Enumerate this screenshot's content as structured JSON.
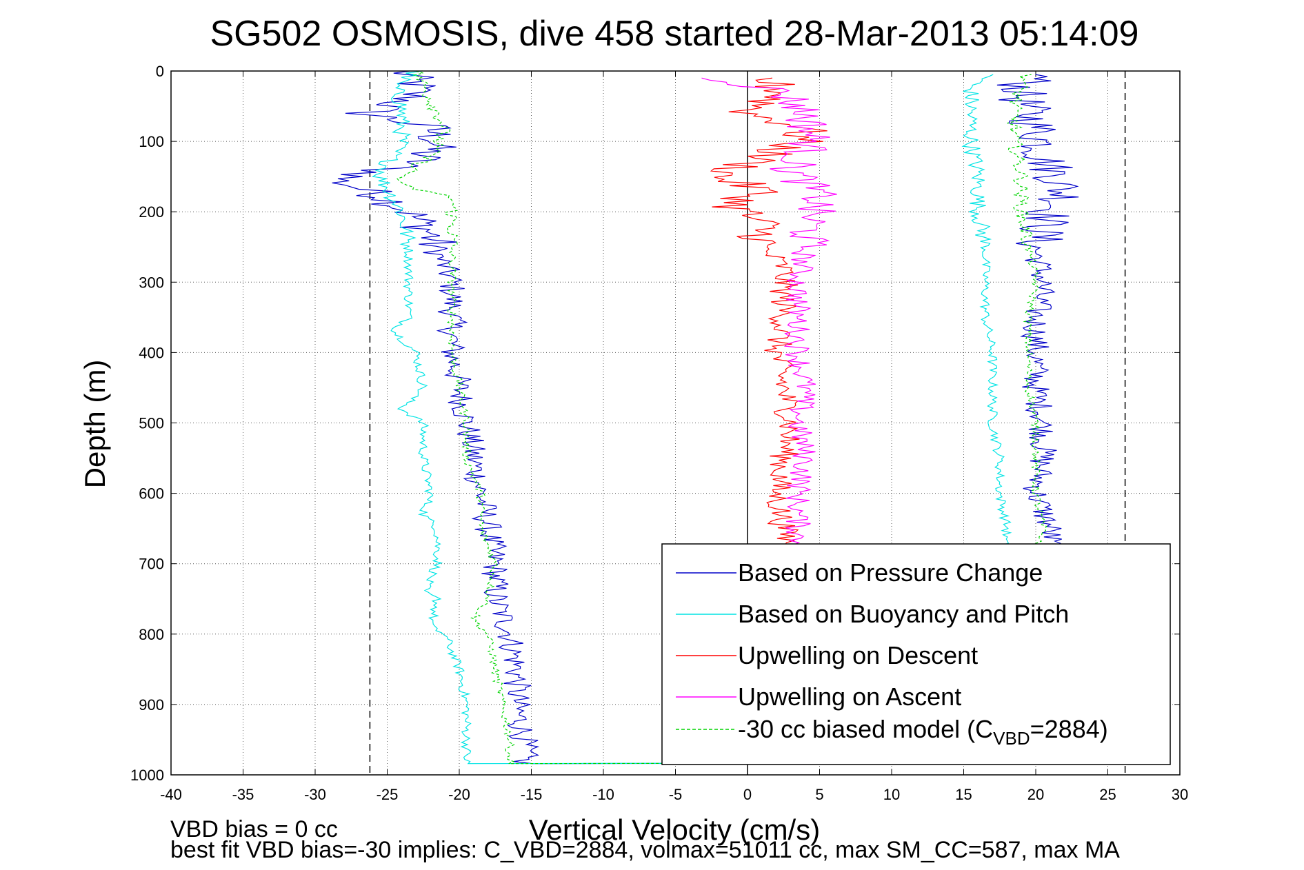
{
  "chart_data": {
    "type": "line",
    "title": "SG502 OSMOSIS, dive 458 started 28-Mar-2013 05:14:09",
    "xlabel": "Vertical Velocity (cm/s)",
    "ylabel": "Depth (m)",
    "xlim": [
      -40,
      30
    ],
    "ylim": [
      0,
      1000
    ],
    "y_reversed": true,
    "grid": true,
    "x_ticks": [
      -40,
      -35,
      -30,
      -25,
      -20,
      -15,
      -10,
      -5,
      0,
      5,
      10,
      15,
      20,
      25,
      30
    ],
    "y_ticks": [
      0,
      100,
      200,
      300,
      400,
      500,
      600,
      700,
      800,
      900,
      1000
    ],
    "legend_position": "bottom-right",
    "reference_lines": [
      {
        "kind": "vertical",
        "x": -26.2,
        "style": "dashed",
        "color": "#000000"
      },
      {
        "kind": "vertical",
        "x": 26.2,
        "style": "dashed",
        "color": "#000000"
      },
      {
        "kind": "vertical",
        "x": 0,
        "style": "solid",
        "color": "#000000"
      }
    ],
    "series": [
      {
        "name": "Based on Pressure Change",
        "color": "#0000c8",
        "style": "solid",
        "descent": {
          "depth": [
            0,
            20,
            40,
            60,
            80,
            100,
            130,
            155,
            180,
            200,
            230,
            260,
            300,
            350,
            400,
            450,
            500,
            550,
            600,
            650,
            700,
            750,
            800,
            850,
            900,
            950,
            985
          ],
          "velocity": [
            -24,
            -23,
            -23.5,
            -26.5,
            -22,
            -21.5,
            -23,
            -28.5,
            -25,
            -23.5,
            -22,
            -21.5,
            -20.5,
            -20.5,
            -20.5,
            -20,
            -19.5,
            -19,
            -18.5,
            -18,
            -17.5,
            -17.5,
            -16.5,
            -16,
            -16,
            -15.5,
            -15.5
          ]
        },
        "ascent": {
          "depth": [
            985,
            950,
            900,
            850,
            800,
            750,
            700,
            650,
            600,
            550,
            500,
            450,
            400,
            350,
            300,
            250,
            200,
            180,
            150,
            120,
            100,
            80,
            60,
            40,
            20,
            5
          ],
          "velocity": [
            21,
            21.5,
            21,
            21.5,
            21,
            20.5,
            21,
            21,
            20,
            20.5,
            20.5,
            20,
            20,
            20,
            20.5,
            20,
            21,
            22,
            21.5,
            20.5,
            20.5,
            20,
            19.5,
            19,
            19,
            20.5
          ]
        }
      },
      {
        "name": "Based on Buoyancy and Pitch",
        "color": "#00e4e4",
        "style": "solid",
        "descent": {
          "depth": [
            0,
            20,
            50,
            80,
            100,
            150,
            200,
            250,
            300,
            350,
            370,
            400,
            450,
            480,
            500,
            550,
            600,
            630,
            650,
            700,
            740,
            750,
            790,
            800,
            850,
            900,
            950,
            985
          ],
          "velocity": [
            -23,
            -24.5,
            -24,
            -24,
            -24,
            -25.5,
            -24,
            -23.5,
            -23.5,
            -23.5,
            -24.5,
            -23,
            -22.5,
            -24,
            -22.5,
            -22.5,
            -22,
            -22.5,
            -21.5,
            -21.5,
            -22.5,
            -21.5,
            -22,
            -21,
            -20,
            -19.5,
            -19.5,
            -19.5
          ]
        },
        "ascent": {
          "depth": [
            985,
            950,
            900,
            850,
            800,
            750,
            700,
            650,
            600,
            550,
            500,
            450,
            400,
            350,
            300,
            250,
            200,
            150,
            100,
            50,
            20,
            5
          ],
          "velocity": [
            17.5,
            17.5,
            18,
            18,
            18,
            17.5,
            17.5,
            18,
            17.5,
            17.5,
            17,
            17,
            17,
            16.5,
            16.5,
            16.5,
            16,
            16,
            15.5,
            15.5,
            15.5,
            17
          ]
        }
      },
      {
        "name": "Upwelling on Descent",
        "color": "#ff0000",
        "style": "solid",
        "values": {
          "depth": [
            10,
            30,
            60,
            80,
            100,
            150,
            170,
            190,
            220,
            250,
            280,
            300,
            350,
            400,
            450,
            500,
            550,
            600,
            650,
            680
          ],
          "velocity": [
            1,
            2.5,
            0,
            4,
            3.5,
            -2,
            1,
            -1,
            1,
            1,
            2.5,
            2.5,
            2.5,
            2,
            2.5,
            3,
            2.5,
            2,
            2.5,
            3
          ]
        }
      },
      {
        "name": "Upwelling on Ascent",
        "color": "#ff00ff",
        "style": "solid",
        "values": {
          "depth": [
            10,
            30,
            60,
            100,
            140,
            180,
            200,
            250,
            300,
            350,
            400,
            450,
            500,
            550,
            600,
            650,
            680
          ],
          "velocity": [
            -2,
            2.5,
            4,
            4.5,
            3,
            5,
            4.5,
            4,
            3.5,
            3.5,
            3.5,
            4,
            3.5,
            4,
            3.5,
            3.5,
            3.5
          ]
        }
      },
      {
        "name": "-30 cc biased model (C",
        "name_sub": "VBD",
        "name_suffix": "=2884)",
        "color": "#00d400",
        "style": "dashed",
        "descent": {
          "depth": [
            0,
            40,
            80,
            120,
            160,
            170,
            180,
            200,
            250,
            300,
            350,
            400,
            450,
            500,
            550,
            600,
            650,
            700,
            750,
            780,
            800,
            850,
            900,
            950,
            985
          ],
          "velocity": [
            -23,
            -22,
            -21,
            -22,
            -24.5,
            -22.5,
            -20.5,
            -20.5,
            -20.5,
            -20.5,
            -20.5,
            -20.5,
            -20,
            -19.5,
            -19.5,
            -18.5,
            -18.5,
            -17.5,
            -18,
            -19,
            -18,
            -17.5,
            -17,
            -16.5,
            -16.5
          ]
        },
        "ascent": {
          "depth": [
            985,
            950,
            900,
            850,
            800,
            750,
            700,
            650,
            600,
            550,
            500,
            450,
            400,
            350,
            300,
            250,
            200,
            150,
            100,
            50,
            20,
            5
          ],
          "velocity": [
            18,
            18.5,
            18.5,
            19,
            19.5,
            19.5,
            20,
            20.5,
            20,
            20,
            20,
            19.5,
            19.5,
            19.5,
            20,
            19.5,
            19,
            19,
            18.5,
            18.5,
            19,
            19.5
          ]
        }
      }
    ],
    "annotations": [
      {
        "id": "vbd_bias",
        "text": "VBD bias = 0 cc"
      },
      {
        "id": "best_fit",
        "text": "best fit VBD bias=-30 implies: C_VBD=2884, volmax=51011 cc, max SM_CC=587, max MA"
      }
    ]
  }
}
